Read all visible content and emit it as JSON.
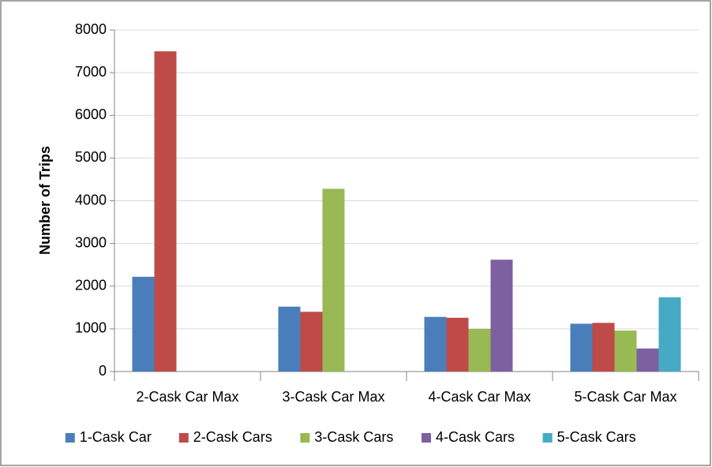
{
  "chart_data": {
    "type": "bar",
    "y_label": "Number of Trips",
    "categories": [
      "2-Cask Car Max",
      "3-Cask Car Max",
      "4-Cask Car Max",
      "5-Cask Car Max"
    ],
    "series": [
      {
        "name": "1-Cask Car",
        "color": "#4a7ebb",
        "values": [
          2220,
          1520,
          1280,
          1120
        ]
      },
      {
        "name": "2-Cask Cars",
        "color": "#be4b48",
        "values": [
          7500,
          1400,
          1260,
          1140
        ]
      },
      {
        "name": "3-Cask Cars",
        "color": "#98b954",
        "values": [
          null,
          4280,
          1000,
          960
        ]
      },
      {
        "name": "4-Cask Cars",
        "color": "#7d60a0",
        "values": [
          null,
          null,
          2620,
          540
        ]
      },
      {
        "name": "5-Cask Cars",
        "color": "#46aac5",
        "values": [
          null,
          null,
          null,
          1740
        ]
      }
    ],
    "ylim": [
      0,
      8000
    ],
    "yticks": [
      0,
      1000,
      2000,
      3000,
      4000,
      5000,
      6000,
      7000,
      8000
    ],
    "grid": true,
    "legend": "bottom"
  }
}
